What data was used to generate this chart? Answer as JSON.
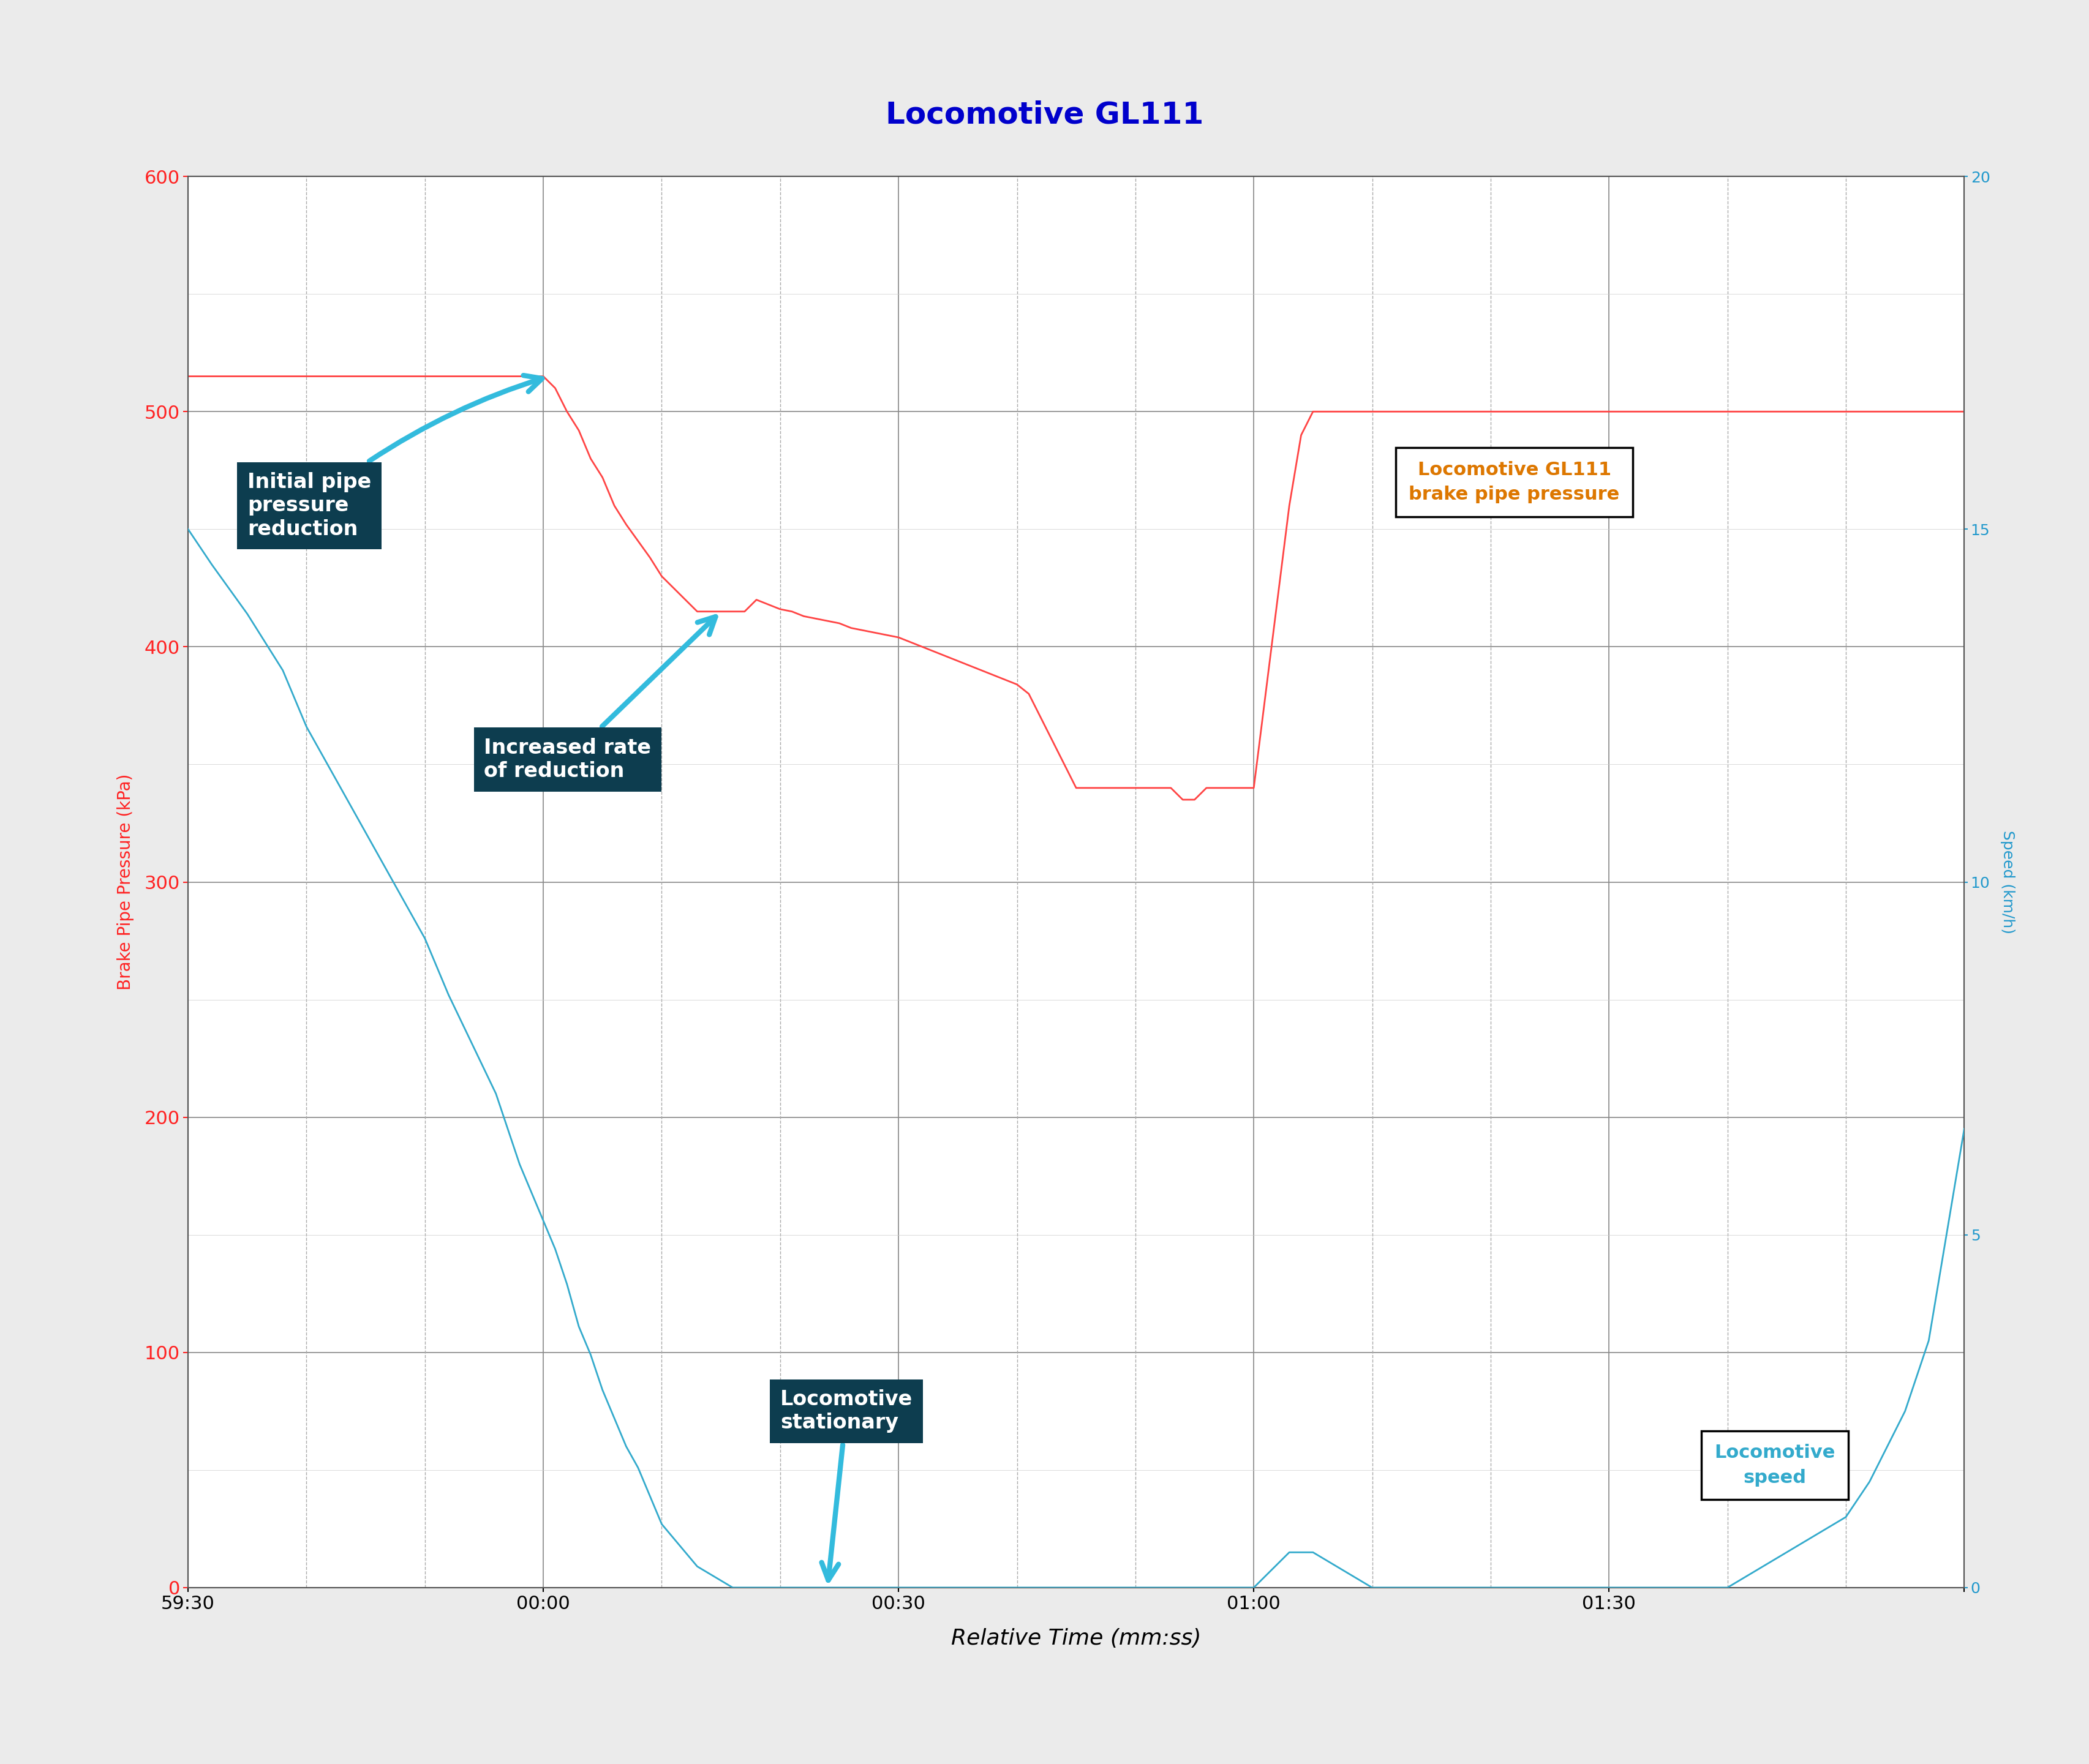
{
  "title": "Locomotive GL111",
  "title_color": "#0000CC",
  "title_fontsize": 36,
  "xlabel": "Relative Time (mm:ss)",
  "xlabel_fontsize": 26,
  "ylabel_left": "Brake Pipe Pressure (kPa)",
  "ylabel_right": "Speed (km/h)",
  "ylabel_left_color": "#FF2222",
  "ylabel_right_color": "#2299CC",
  "ylim_left": [
    0,
    600
  ],
  "ylim_right": [
    0,
    20
  ],
  "yticks_left": [
    0,
    100,
    200,
    300,
    400,
    500,
    600
  ],
  "yticks_right": [
    0,
    5,
    10,
    15,
    20
  ],
  "bg_color": "#EBEBEB",
  "plot_bg_color": "#FFFFFF",
  "grid_major_color": "#888888",
  "grid_minor_color": "#AAAAAA",
  "time_start_seconds": -30,
  "time_end_seconds": 120,
  "xtick_seconds": [
    -30,
    0,
    30,
    60,
    90,
    120
  ],
  "xtick_labels": [
    "59:30",
    "00:00",
    "00:30",
    "01:00",
    "01:30",
    ""
  ],
  "pressure_color": "#FF4444",
  "speed_color": "#33AACC",
  "annotation_bg_color": "#0D3D4F",
  "annotation_text_color": "#FFFFFF",
  "annotation_fontsize": 24,
  "legend_fontsize": 22,
  "tick_fontsize": 22,
  "pressure_data_x": [
    -30,
    -29,
    -28,
    -27,
    -26,
    -25,
    -24,
    -23,
    -22,
    -21,
    -20,
    -19,
    -18,
    -17,
    -16,
    -15,
    -14,
    -13,
    -12,
    -11,
    -10,
    -9,
    -8,
    -7,
    -6,
    -5,
    -4,
    -3,
    -2,
    -1,
    0,
    1,
    2,
    3,
    4,
    5,
    6,
    7,
    8,
    9,
    10,
    11,
    12,
    13,
    14,
    15,
    16,
    17,
    18,
    19,
    20,
    21,
    22,
    23,
    24,
    25,
    26,
    27,
    28,
    29,
    30,
    31,
    32,
    33,
    34,
    35,
    36,
    37,
    38,
    39,
    40,
    41,
    42,
    43,
    44,
    45,
    50,
    52,
    53,
    54,
    55,
    56,
    57,
    58,
    59,
    60,
    61,
    62,
    63,
    64,
    65,
    70,
    75,
    76,
    77,
    78,
    79,
    80,
    85,
    90,
    95,
    100,
    105,
    110,
    115,
    120
  ],
  "pressure_data_y": [
    515,
    515,
    515,
    515,
    515,
    515,
    515,
    515,
    515,
    515,
    515,
    515,
    515,
    515,
    515,
    515,
    515,
    515,
    515,
    515,
    515,
    515,
    515,
    515,
    515,
    515,
    515,
    515,
    515,
    515,
    515,
    510,
    500,
    492,
    480,
    472,
    460,
    452,
    445,
    438,
    430,
    425,
    420,
    415,
    415,
    415,
    415,
    415,
    420,
    418,
    416,
    415,
    413,
    412,
    411,
    410,
    408,
    407,
    406,
    405,
    404,
    402,
    400,
    398,
    396,
    394,
    392,
    390,
    388,
    386,
    384,
    380,
    370,
    360,
    350,
    340,
    340,
    340,
    340,
    335,
    335,
    340,
    340,
    340,
    340,
    340,
    380,
    420,
    460,
    490,
    500,
    500,
    500,
    500,
    500,
    500,
    500,
    500,
    500,
    500,
    500,
    500,
    500,
    500,
    500,
    500
  ],
  "speed_data_x": [
    -30,
    -28,
    -25,
    -22,
    -20,
    -17,
    -15,
    -12,
    -10,
    -8,
    -6,
    -4,
    -2,
    0,
    1,
    2,
    3,
    4,
    5,
    6,
    7,
    8,
    9,
    10,
    11,
    12,
    13,
    14,
    15,
    16,
    17,
    18,
    19,
    20,
    21,
    22,
    23,
    24,
    25,
    26,
    27,
    28,
    29,
    30,
    31,
    35,
    40,
    45,
    50,
    55,
    60,
    63,
    65,
    70,
    75,
    80,
    85,
    90,
    95,
    100,
    105,
    110,
    112,
    115,
    117,
    120
  ],
  "speed_data_y": [
    15,
    14.5,
    13.8,
    13,
    12.2,
    11.3,
    10.7,
    9.8,
    9.2,
    8.4,
    7.7,
    7.0,
    6.0,
    5.2,
    4.8,
    4.3,
    3.7,
    3.3,
    2.8,
    2.4,
    2.0,
    1.7,
    1.3,
    0.9,
    0.7,
    0.5,
    0.3,
    0.2,
    0.1,
    0.0,
    0.0,
    0.0,
    0.0,
    0.0,
    0.0,
    0.0,
    0.0,
    0.0,
    0.0,
    0.0,
    0.0,
    0.0,
    0.0,
    0.0,
    0.0,
    0.0,
    0.0,
    0.0,
    0.0,
    0.0,
    0.0,
    0.5,
    0.5,
    0.0,
    0.0,
    0.0,
    0.0,
    0.0,
    0.0,
    0.0,
    0.5,
    1.0,
    1.5,
    2.5,
    3.5,
    6.5
  ]
}
